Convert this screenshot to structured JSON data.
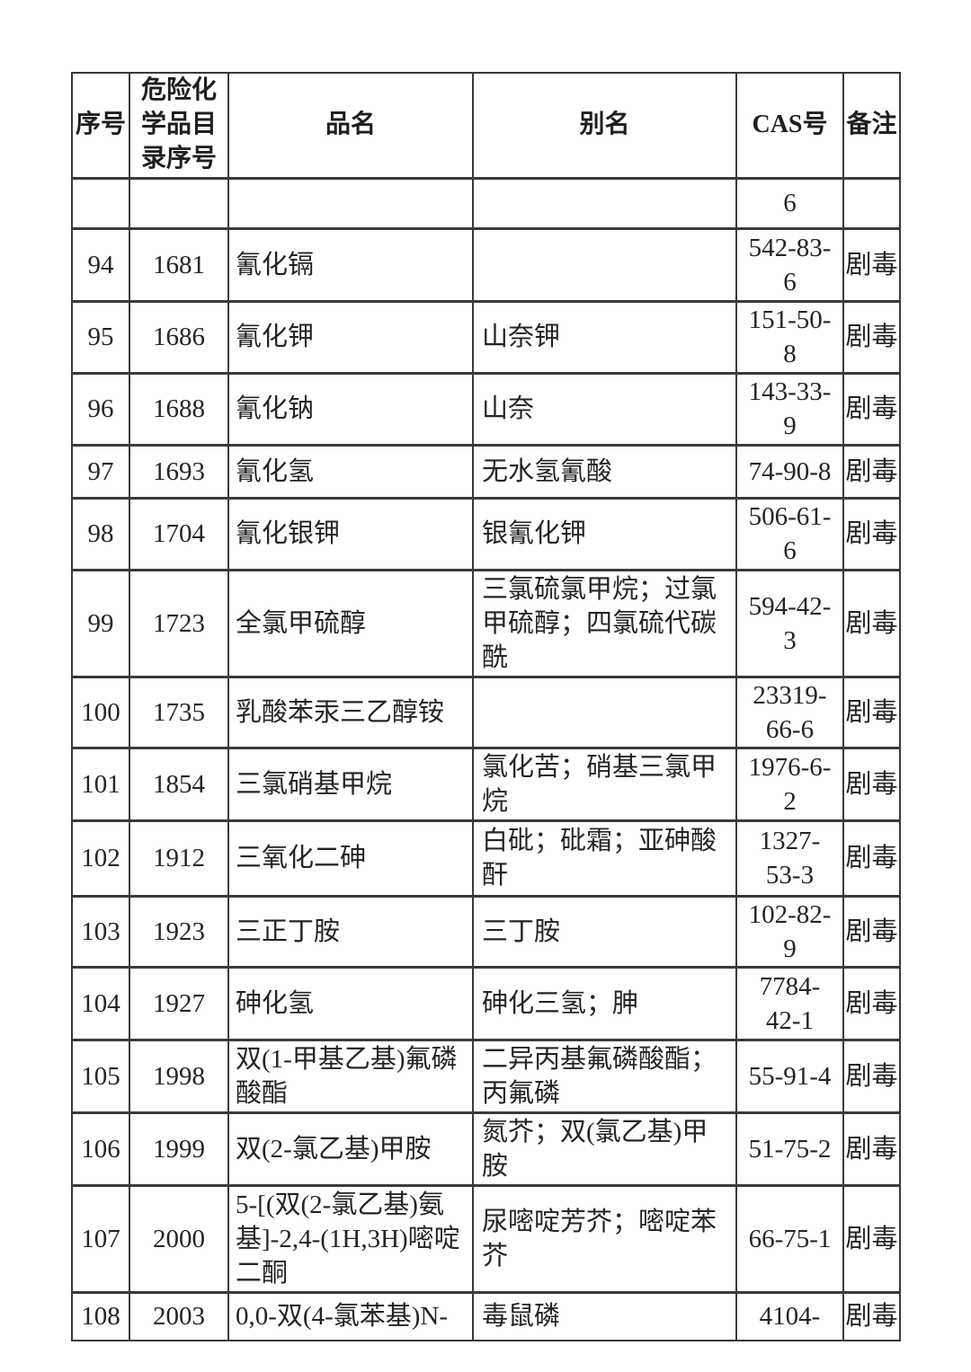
{
  "page": {
    "background": "#ffffff",
    "text_color": "#242424",
    "border_color": "#3a3a3a",
    "toxicity_note": "剧毒"
  },
  "table": {
    "columns": [
      {
        "key": "no",
        "label": "序号"
      },
      {
        "key": "catalog_no",
        "label": "危险化学品目录序号"
      },
      {
        "key": "name",
        "label": "品名"
      },
      {
        "key": "alias",
        "label": "别名"
      },
      {
        "key": "cas",
        "label": "CAS号"
      },
      {
        "key": "note",
        "label": "备注"
      }
    ],
    "carryover_row": {
      "no": "",
      "catalog_no": "",
      "name": "",
      "alias": "",
      "cas": "6",
      "note": ""
    },
    "rows": [
      {
        "no": "94",
        "catalog_no": "1681",
        "name": "氰化镉",
        "alias": "",
        "cas": "542-83-\n6",
        "note": "剧毒"
      },
      {
        "no": "95",
        "catalog_no": "1686",
        "name": "氰化钾",
        "alias": "山奈钾",
        "cas": "151-50-\n8",
        "note": "剧毒"
      },
      {
        "no": "96",
        "catalog_no": "1688",
        "name": "氰化钠",
        "alias": "山奈",
        "cas": "143-33-\n9",
        "note": "剧毒"
      },
      {
        "no": "97",
        "catalog_no": "1693",
        "name": "氰化氢",
        "alias": "无水氢氰酸",
        "cas": "74-90-8",
        "note": "剧毒"
      },
      {
        "no": "98",
        "catalog_no": "1704",
        "name": "氰化银钾",
        "alias": "银氰化钾",
        "cas": "506-61-\n6",
        "note": "剧毒"
      },
      {
        "no": "99",
        "catalog_no": "1723",
        "name": "全氯甲硫醇",
        "alias": "三氯硫氯甲烷；过氯甲硫醇；四氯硫代碳酰",
        "cas": "594-42-\n3",
        "note": "剧毒"
      },
      {
        "no": "100",
        "catalog_no": "1735",
        "name": "乳酸苯汞三乙醇铵",
        "alias": "",
        "cas": "23319-\n66-6",
        "note": "剧毒"
      },
      {
        "no": "101",
        "catalog_no": "1854",
        "name": "三氯硝基甲烷",
        "alias": "氯化苦；硝基三氯甲烷",
        "cas": "1976-6-\n2",
        "note": "剧毒"
      },
      {
        "no": "102",
        "catalog_no": "1912",
        "name": "三氧化二砷",
        "alias": "白砒；砒霜；亚砷酸酐",
        "cas": "1327-\n53-3",
        "note": "剧毒"
      },
      {
        "no": "103",
        "catalog_no": "1923",
        "name": "三正丁胺",
        "alias": "三丁胺",
        "cas": "102-82-\n9",
        "note": "剧毒"
      },
      {
        "no": "104",
        "catalog_no": "1927",
        "name": "砷化氢",
        "alias": "砷化三氢；胂",
        "cas": "7784-\n42-1",
        "note": "剧毒"
      },
      {
        "no": "105",
        "catalog_no": "1998",
        "name": "双(1-甲基乙基)氟磷酸酯",
        "alias": "二异丙基氟磷酸酯；丙氟磷",
        "cas": "55-91-4",
        "note": "剧毒"
      },
      {
        "no": "106",
        "catalog_no": "1999",
        "name": "双(2-氯乙基)甲胺",
        "alias": "氮芥；双(氯乙基)甲胺",
        "cas": "51-75-2",
        "note": "剧毒"
      },
      {
        "no": "107",
        "catalog_no": "2000",
        "name": "5-[(双(2-氯乙基)氨基]-2,4-(1H,3H)嘧啶二酮",
        "alias": "尿嘧啶芳芥；嘧啶苯芥",
        "cas": "66-75-1",
        "note": "剧毒"
      },
      {
        "no": "108",
        "catalog_no": "2003",
        "name": "0,0-双(4-氯苯基)N-",
        "alias": "毒鼠磷",
        "cas": "4104-",
        "note": "剧毒"
      }
    ]
  }
}
